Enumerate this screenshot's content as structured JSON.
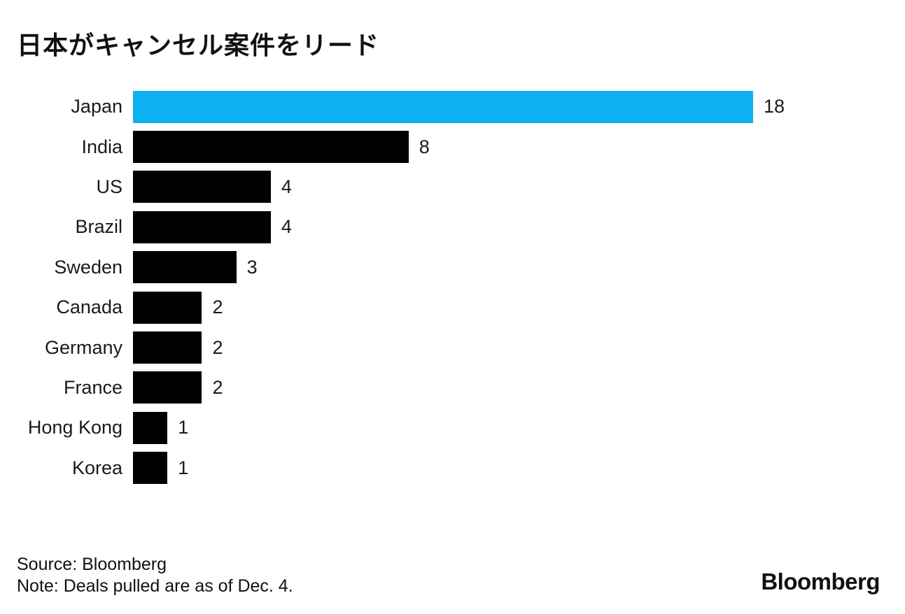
{
  "title": "日本がキャンセル案件をリード",
  "chart_data": {
    "type": "bar",
    "orientation": "horizontal",
    "title": "日本がキャンセル案件をリード",
    "categories": [
      "Japan",
      "India",
      "US",
      "Brazil",
      "Sweden",
      "Canada",
      "Germany",
      "France",
      "Hong Kong",
      "Korea"
    ],
    "values": [
      18,
      8,
      4,
      4,
      3,
      2,
      2,
      2,
      1,
      1
    ],
    "value_labels_shown": true,
    "xlim": [
      0,
      18
    ],
    "grid": false,
    "legend": "none",
    "highlight_category": "Japan",
    "colors": {
      "highlight": "#0eb0f2",
      "default": "#000000"
    }
  },
  "footer": {
    "source": "Source: Bloomberg",
    "note": "Note: Deals pulled are as of Dec. 4.",
    "brand_logo": "Bloomberg"
  }
}
